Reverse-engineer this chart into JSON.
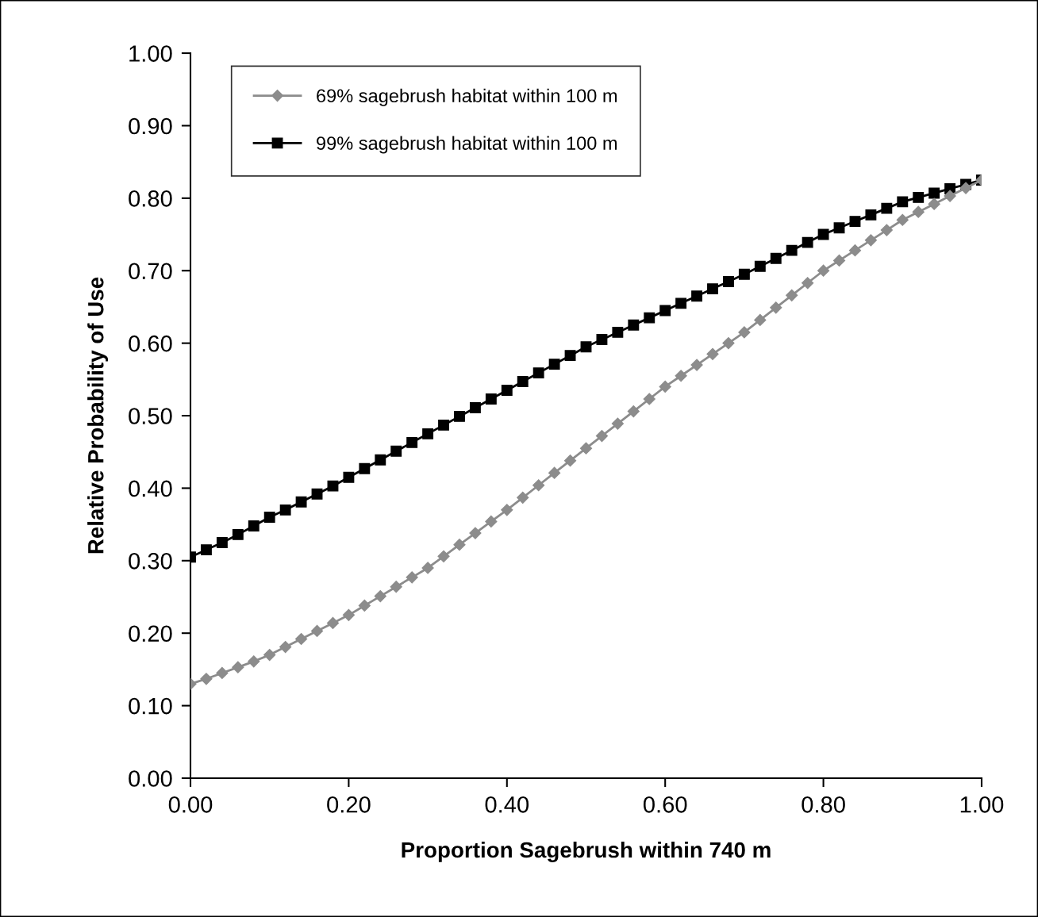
{
  "chart_data": {
    "type": "line",
    "xlabel": "Proportion Sagebrush within 740 m",
    "ylabel": "Relative Probability of Use",
    "x": [
      0,
      0.02,
      0.04,
      0.06,
      0.08,
      0.1,
      0.12,
      0.14,
      0.16,
      0.18,
      0.2,
      0.22,
      0.24,
      0.26,
      0.28,
      0.3,
      0.32,
      0.34,
      0.36,
      0.38,
      0.4,
      0.42,
      0.44,
      0.46,
      0.48,
      0.5,
      0.52,
      0.54,
      0.56,
      0.58,
      0.6,
      0.62,
      0.64,
      0.66,
      0.68,
      0.7,
      0.72,
      0.74,
      0.76,
      0.78,
      0.8,
      0.82,
      0.84,
      0.86,
      0.88,
      0.9,
      0.92,
      0.94,
      0.96,
      0.98,
      1.0
    ],
    "series": [
      {
        "name": "69% sagebrush habitat within 100 m",
        "color": "#8c8c8c",
        "marker": "diamond",
        "values": [
          0.13,
          0.137,
          0.145,
          0.153,
          0.161,
          0.17,
          0.181,
          0.192,
          0.203,
          0.214,
          0.225,
          0.238,
          0.251,
          0.264,
          0.277,
          0.29,
          0.306,
          0.322,
          0.338,
          0.354,
          0.37,
          0.387,
          0.404,
          0.421,
          0.438,
          0.455,
          0.472,
          0.489,
          0.506,
          0.523,
          0.54,
          0.555,
          0.57,
          0.585,
          0.6,
          0.615,
          0.632,
          0.649,
          0.666,
          0.683,
          0.7,
          0.714,
          0.728,
          0.742,
          0.756,
          0.77,
          0.781,
          0.792,
          0.803,
          0.814,
          0.825
        ]
      },
      {
        "name": "99% sagebrush habitat within 100 m",
        "color": "#000000",
        "marker": "square",
        "values": [
          0.305,
          0.315,
          0.325,
          0.336,
          0.348,
          0.36,
          0.37,
          0.381,
          0.392,
          0.403,
          0.415,
          0.427,
          0.439,
          0.451,
          0.463,
          0.475,
          0.487,
          0.499,
          0.511,
          0.523,
          0.535,
          0.547,
          0.559,
          0.571,
          0.583,
          0.595,
          0.605,
          0.615,
          0.625,
          0.635,
          0.645,
          0.655,
          0.665,
          0.675,
          0.685,
          0.695,
          0.706,
          0.717,
          0.728,
          0.739,
          0.75,
          0.759,
          0.768,
          0.777,
          0.786,
          0.795,
          0.801,
          0.807,
          0.813,
          0.819,
          0.825
        ]
      }
    ],
    "xlim": [
      0,
      1
    ],
    "xticks": [
      {
        "value": 0,
        "label": "0.00"
      },
      {
        "value": 0.2,
        "label": "0.20"
      },
      {
        "value": 0.4,
        "label": "0.40"
      },
      {
        "value": 0.6,
        "label": "0.60"
      },
      {
        "value": 0.8,
        "label": "0.80"
      },
      {
        "value": 1,
        "label": "1.00"
      }
    ],
    "ylim": [
      0,
      1
    ],
    "yticks": [
      {
        "value": 0,
        "label": "0.00"
      },
      {
        "value": 0.1,
        "label": "0.10"
      },
      {
        "value": 0.2,
        "label": "0.20"
      },
      {
        "value": 0.3,
        "label": "0.30"
      },
      {
        "value": 0.4,
        "label": "0.40"
      },
      {
        "value": 0.5,
        "label": "0.50"
      },
      {
        "value": 0.6,
        "label": "0.60"
      },
      {
        "value": 0.7,
        "label": "0.70"
      },
      {
        "value": 0.8,
        "label": "0.80"
      },
      {
        "value": 0.9,
        "label": "0.90"
      },
      {
        "value": 1,
        "label": "1.00"
      }
    ],
    "grid": false,
    "legend": "top left",
    "line_style": "solid"
  }
}
